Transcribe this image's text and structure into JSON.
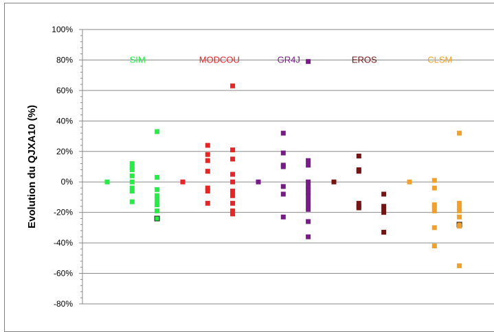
{
  "chart_data": {
    "type": "scatter",
    "title": "",
    "xlabel": "",
    "ylabel": "Evolution du QJXA10 (%)",
    "ylim": [
      -80,
      100
    ],
    "y_ticks": [
      "100%",
      "80%",
      "60%",
      "40%",
      "20%",
      "0%",
      "-20%",
      "-40%",
      "-60%",
      "-80%"
    ],
    "grid": true,
    "legend": "none",
    "groups": [
      {
        "name": "SIM",
        "color": "#22ee44",
        "columns": [
          {
            "x": 1.0,
            "values": [
              0
            ]
          },
          {
            "x": 1.33,
            "values": [
              12,
              10,
              8,
              4,
              0,
              -4,
              -6,
              -13
            ]
          },
          {
            "x": 1.66,
            "values": [
              33,
              3,
              -5,
              -9,
              -11,
              -14,
              -15,
              -19,
              -24
            ],
            "outlined": [
              -24
            ]
          }
        ]
      },
      {
        "name": "MODCOU",
        "color": "#ee2222",
        "columns": [
          {
            "x": 2.0,
            "values": [
              0
            ]
          },
          {
            "x": 2.33,
            "values": [
              24,
              18,
              14,
              7,
              -4,
              -6,
              -14
            ]
          },
          {
            "x": 2.66,
            "values": [
              63,
              21,
              15,
              5,
              0,
              -6,
              -9,
              -14,
              -19,
              -21
            ]
          }
        ]
      },
      {
        "name": "GR4J",
        "color": "#7a1a8a",
        "columns": [
          {
            "x": 3.0,
            "values": [
              0
            ]
          },
          {
            "x": 3.33,
            "values": [
              32,
              19,
              11,
              10,
              -3,
              -8,
              -23
            ]
          },
          {
            "x": 3.66,
            "values": [
              79,
              14,
              11,
              0,
              -3,
              -5,
              -7,
              -9,
              -12,
              -15,
              -18,
              -26,
              -36
            ]
          }
        ]
      },
      {
        "name": "EROS",
        "color": "#7a1212",
        "columns": [
          {
            "x": 4.0,
            "values": [
              0
            ]
          },
          {
            "x": 4.33,
            "values": [
              17,
              8,
              7,
              -14,
              -16,
              -17
            ]
          },
          {
            "x": 4.66,
            "values": [
              -8,
              -16,
              -18,
              -20,
              -33
            ]
          }
        ]
      },
      {
        "name": "CLSM",
        "color": "#f5a025",
        "columns": [
          {
            "x": 5.0,
            "values": [
              0
            ]
          },
          {
            "x": 5.33,
            "values": [
              1,
              -4,
              -15,
              -16,
              -19,
              -30,
              -42
            ]
          },
          {
            "x": 5.66,
            "values": [
              32,
              -14,
              -17,
              -19,
              -23,
              -28,
              -29,
              -55
            ],
            "outlined": [
              -28
            ]
          }
        ]
      }
    ]
  }
}
